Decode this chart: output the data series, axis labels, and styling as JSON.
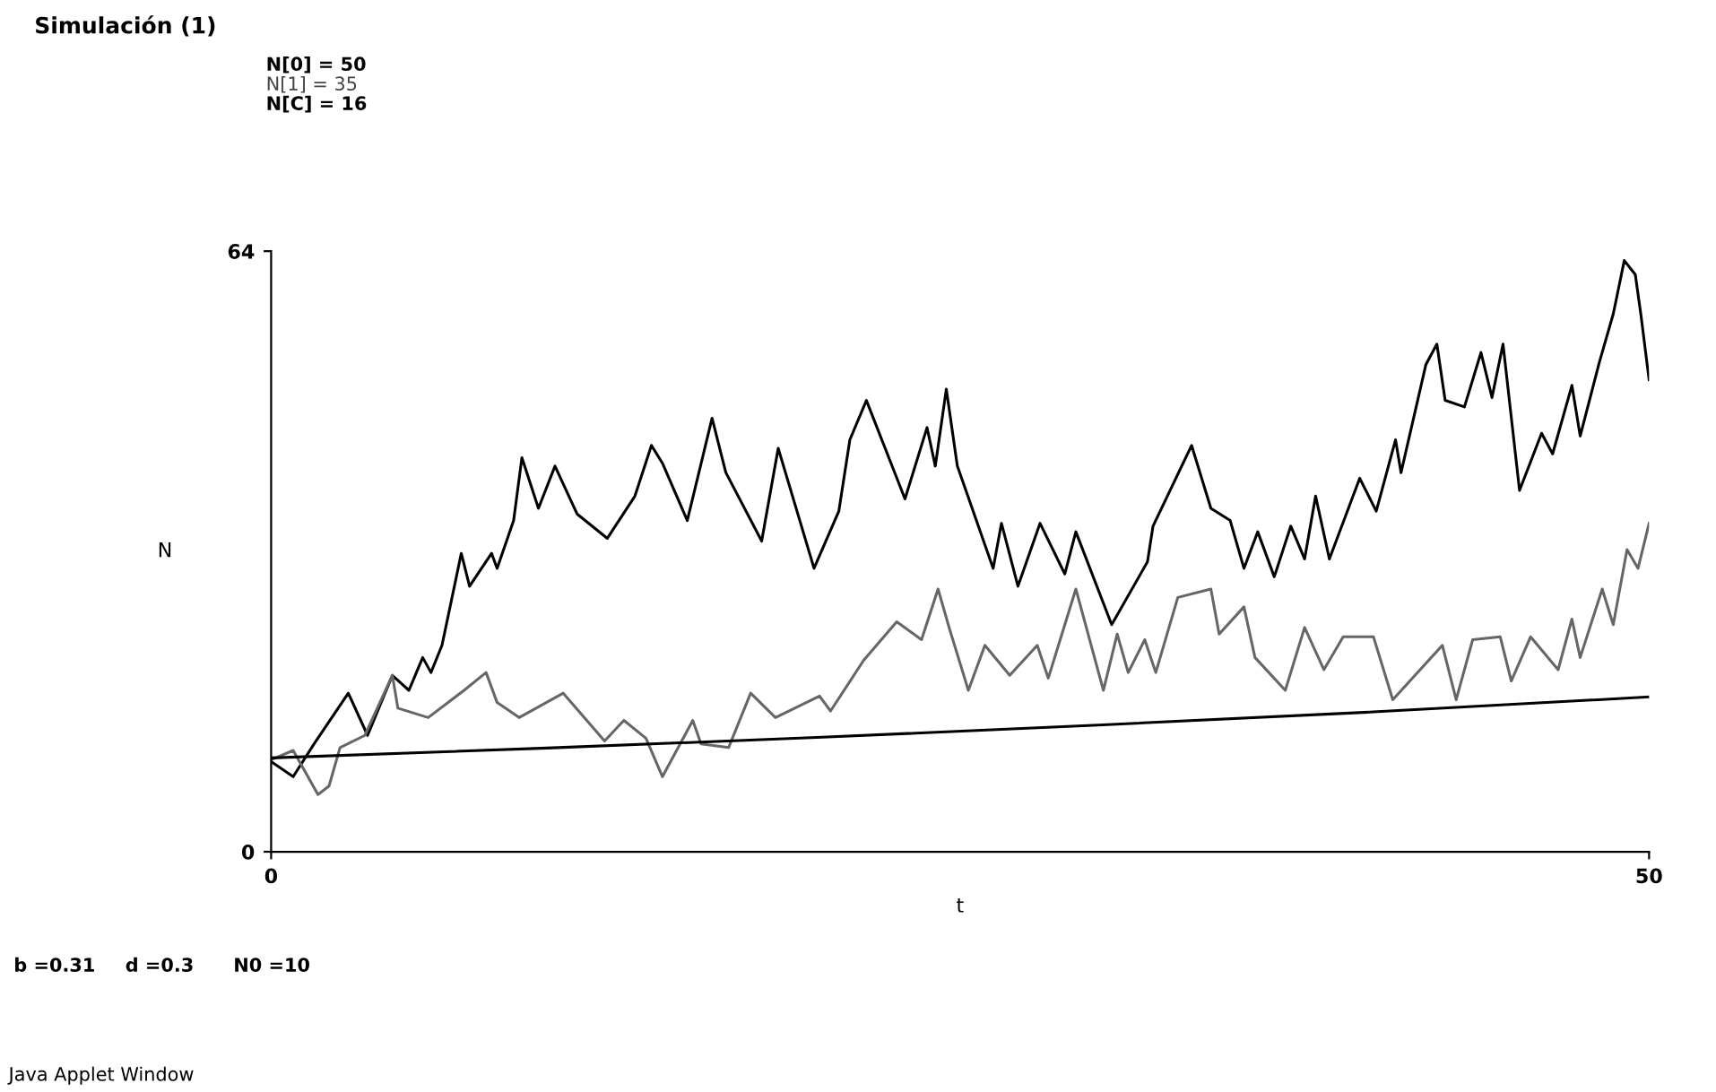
{
  "chart_data": {
    "type": "line",
    "title": "Simulación (1)",
    "xlabel": "t",
    "ylabel": "N",
    "xlim": [
      0,
      50
    ],
    "ylim": [
      0,
      64
    ],
    "xticks": [
      0,
      50
    ],
    "yticks": [
      0,
      64
    ],
    "grid": false,
    "legend": false,
    "marker": "none",
    "line_style": "solid",
    "annotations": [
      "N[0] = 50",
      "N[1] = 35",
      "N[C] = 16",
      "b =0.31",
      "d =0.3",
      "N0 =10",
      "Java Applet Window"
    ],
    "series": [
      {
        "color": "#000000",
        "x": [
          0,
          0.8,
          1.56,
          2.8,
          3.5,
          4.4,
          5.0,
          5.5,
          5.8,
          6.2,
          6.9,
          7.2,
          8.0,
          8.2,
          8.8,
          9.1,
          9.7,
          10.3,
          11.1,
          12.2,
          13.2,
          13.8,
          14.2,
          15.1,
          16.0,
          16.5,
          17.8,
          18.4,
          19.7,
          20.6,
          21.0,
          21.6,
          23.0,
          23.8,
          24.1,
          24.5,
          24.9,
          26.2,
          26.5,
          27.1,
          27.9,
          28.8,
          29.2,
          30.5,
          31.8,
          32.0,
          33.4,
          34.1,
          34.8,
          35.3,
          35.8,
          36.4,
          37.0,
          37.5,
          37.9,
          38.4,
          39.5,
          40.1,
          40.8,
          41.0,
          41.9,
          42.3,
          42.6,
          43.3,
          43.9,
          44.3,
          44.7,
          45.3,
          46.1,
          46.5,
          47.2,
          47.5,
          48.2,
          48.7,
          49.1,
          49.5,
          49.7,
          50.0
        ],
        "values": [
          9.6,
          8.0,
          11.5,
          16.9,
          12.4,
          18.8,
          17.2,
          20.7,
          19.1,
          22.0,
          31.8,
          28.3,
          31.8,
          30.2,
          35.3,
          42.0,
          36.6,
          41.1,
          36.0,
          33.4,
          37.9,
          43.3,
          41.4,
          35.3,
          46.2,
          40.4,
          33.1,
          43.0,
          30.2,
          36.3,
          43.9,
          48.1,
          37.6,
          45.2,
          41.1,
          49.3,
          41.1,
          30.2,
          35.0,
          28.3,
          35.0,
          29.6,
          34.1,
          24.2,
          30.9,
          34.7,
          43.3,
          36.6,
          35.3,
          30.2,
          34.1,
          29.3,
          34.7,
          31.2,
          37.9,
          31.2,
          39.8,
          36.3,
          43.9,
          40.4,
          51.9,
          54.1,
          48.1,
          47.4,
          53.2,
          48.4,
          54.1,
          38.5,
          44.6,
          42.4,
          49.7,
          44.3,
          52.2,
          57.3,
          63.0,
          61.5,
          57.3,
          50.3
        ]
      },
      {
        "color": "#666666",
        "x": [
          0,
          0.8,
          1.7,
          2.1,
          2.5,
          3.4,
          4.4,
          4.6,
          5.7,
          7.0,
          7.8,
          8.2,
          9.0,
          10.6,
          12.1,
          12.8,
          13.6,
          14.2,
          15.3,
          15.6,
          16.6,
          17.4,
          18.3,
          19.9,
          20.3,
          21.5,
          22.7,
          23.6,
          24.2,
          24.6,
          25.3,
          25.9,
          26.8,
          27.8,
          28.2,
          29.2,
          30.2,
          30.7,
          31.1,
          31.7,
          32.1,
          32.9,
          34.1,
          34.4,
          35.3,
          35.7,
          36.8,
          37.5,
          38.2,
          38.9,
          40.0,
          40.7,
          42.5,
          43.0,
          43.6,
          44.6,
          45.0,
          45.7,
          46.7,
          47.2,
          47.5,
          48.3,
          48.7,
          49.2,
          49.6,
          50.0
        ],
        "values": [
          9.8,
          10.8,
          6.1,
          7.0,
          11.1,
          12.4,
          18.8,
          15.3,
          14.3,
          17.2,
          19.1,
          15.9,
          14.3,
          16.9,
          11.8,
          14.0,
          12.1,
          8.0,
          14.0,
          11.5,
          11.1,
          16.9,
          14.3,
          16.6,
          15.0,
          20.4,
          24.5,
          22.6,
          28.0,
          23.9,
          17.2,
          22.0,
          18.8,
          22.0,
          18.5,
          28.0,
          17.2,
          23.2,
          19.1,
          22.6,
          19.1,
          27.1,
          28.0,
          23.2,
          26.1,
          20.7,
          17.2,
          23.9,
          19.4,
          22.9,
          22.9,
          16.2,
          22.0,
          16.2,
          22.6,
          22.9,
          18.2,
          22.9,
          19.4,
          24.8,
          20.7,
          28.0,
          24.2,
          32.2,
          30.2,
          35.0
        ]
      },
      {
        "color": "#000000",
        "x": [
          0,
          10,
          20,
          30,
          40,
          50
        ],
        "values": [
          10,
          11.05,
          12.2,
          13.5,
          14.9,
          16.5
        ]
      }
    ]
  }
}
